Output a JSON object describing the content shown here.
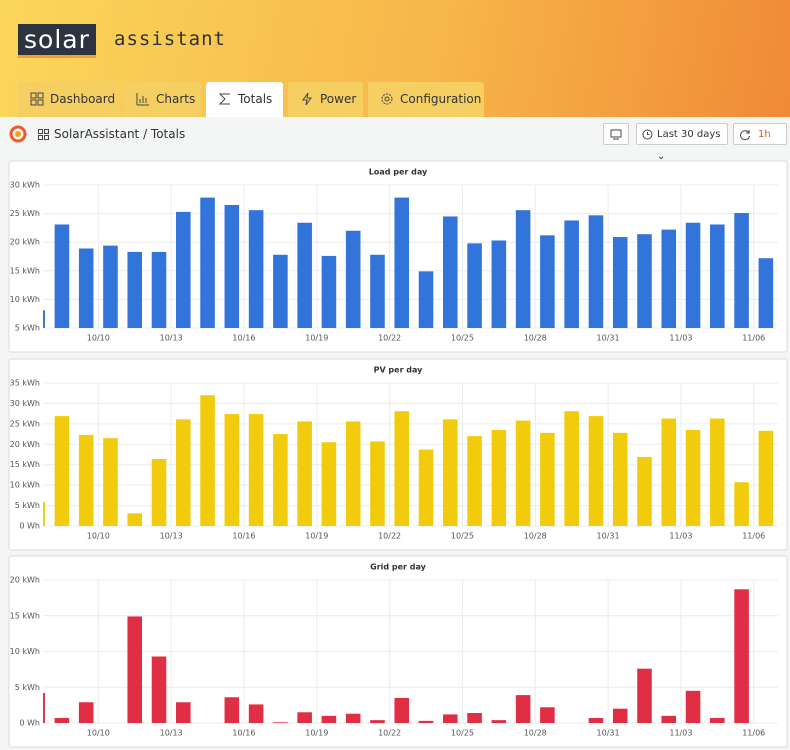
{
  "header": {
    "logo_word": "solar",
    "logo_suffix": "assistant"
  },
  "tabs": [
    "Dashboard",
    "Charts",
    "Totals",
    "Power",
    "Configuration"
  ],
  "toolbar": {
    "breadcrumb": "SolarAssistant / Totals",
    "time_range": "Last 30 days",
    "refresh_interval": "1h"
  },
  "chart_data": [
    {
      "type": "bar",
      "title": "Load per day",
      "color": "#3274d9",
      "categories": [
        null,
        null,
        null,
        "10/10",
        null,
        null,
        "10/13",
        null,
        null,
        "10/16",
        null,
        null,
        "10/19",
        null,
        null,
        "10/22",
        null,
        null,
        "10/25",
        null,
        null,
        "10/28",
        null,
        null,
        "10/31",
        null,
        null,
        "11/03",
        null,
        null,
        "11/06"
      ],
      "values": [
        8.1,
        23.1,
        18.9,
        19.4,
        18.3,
        18.3,
        25.3,
        27.8,
        26.5,
        25.6,
        17.8,
        23.4,
        17.6,
        22.0,
        17.8,
        27.8,
        14.9,
        24.5,
        19.8,
        20.3,
        25.6,
        21.2,
        23.8,
        24.7,
        20.9,
        21.4,
        22.2,
        23.4,
        23.1,
        25.1,
        17.2
      ],
      "ylim": [
        5,
        30
      ],
      "yticks": [
        {
          "value": 5,
          "label": "5 kWh"
        },
        {
          "value": 10,
          "label": "10 kWh"
        },
        {
          "value": 15,
          "label": "15 kWh"
        },
        {
          "value": 20,
          "label": "20 kWh"
        },
        {
          "value": 25,
          "label": "25 kWh"
        },
        {
          "value": 30,
          "label": "30 kWh"
        }
      ],
      "grid": true
    },
    {
      "type": "bar",
      "title": "PV per day",
      "color": "#f2cc0c",
      "categories": [
        null,
        null,
        null,
        "10/10",
        null,
        null,
        "10/13",
        null,
        null,
        "10/16",
        null,
        null,
        "10/19",
        null,
        null,
        "10/22",
        null,
        null,
        "10/25",
        null,
        null,
        "10/28",
        null,
        null,
        "10/31",
        null,
        null,
        "11/03",
        null,
        null,
        "11/06"
      ],
      "values": [
        5.9,
        26.9,
        22.3,
        21.5,
        3.1,
        16.4,
        26.1,
        32.0,
        27.4,
        27.4,
        22.5,
        25.6,
        20.5,
        25.6,
        20.7,
        28.1,
        18.7,
        26.1,
        22.0,
        23.5,
        25.8,
        22.8,
        28.1,
        26.9,
        22.8,
        16.9,
        26.3,
        23.5,
        26.3,
        10.7,
        23.3
      ],
      "ylim": [
        0,
        35
      ],
      "yticks": [
        {
          "value": 0,
          "label": "0 Wh"
        },
        {
          "value": 5,
          "label": "5 kWh"
        },
        {
          "value": 10,
          "label": "10 kWh"
        },
        {
          "value": 15,
          "label": "15 kWh"
        },
        {
          "value": 20,
          "label": "20 kWh"
        },
        {
          "value": 25,
          "label": "25 kWh"
        },
        {
          "value": 30,
          "label": "30 kWh"
        },
        {
          "value": 35,
          "label": "35 kWh"
        }
      ],
      "grid": true
    },
    {
      "type": "bar",
      "title": "Grid per day",
      "color": "#e02f44",
      "categories": [
        null,
        null,
        null,
        "10/10",
        null,
        null,
        "10/13",
        null,
        null,
        "10/16",
        null,
        null,
        "10/19",
        null,
        null,
        "10/22",
        null,
        null,
        "10/25",
        null,
        null,
        "10/28",
        null,
        null,
        "10/31",
        null,
        null,
        "11/03",
        null,
        null,
        "11/06"
      ],
      "values": [
        4.2,
        0.7,
        2.9,
        0,
        14.9,
        9.3,
        2.9,
        0,
        3.6,
        2.6,
        0.1,
        1.5,
        1.0,
        1.3,
        0.4,
        3.5,
        0.3,
        1.2,
        1.4,
        0.4,
        3.9,
        2.2,
        0,
        0.7,
        2.0,
        7.6,
        1.0,
        4.5,
        0.7,
        18.7,
        0
      ],
      "ylim": [
        0,
        20
      ],
      "yticks": [
        {
          "value": 0,
          "label": "0 Wh"
        },
        {
          "value": 5,
          "label": "5 kWh"
        },
        {
          "value": 10,
          "label": "10 kWh"
        },
        {
          "value": 15,
          "label": "15 kWh"
        },
        {
          "value": 20,
          "label": "20 kWh"
        }
      ],
      "grid": true
    }
  ]
}
